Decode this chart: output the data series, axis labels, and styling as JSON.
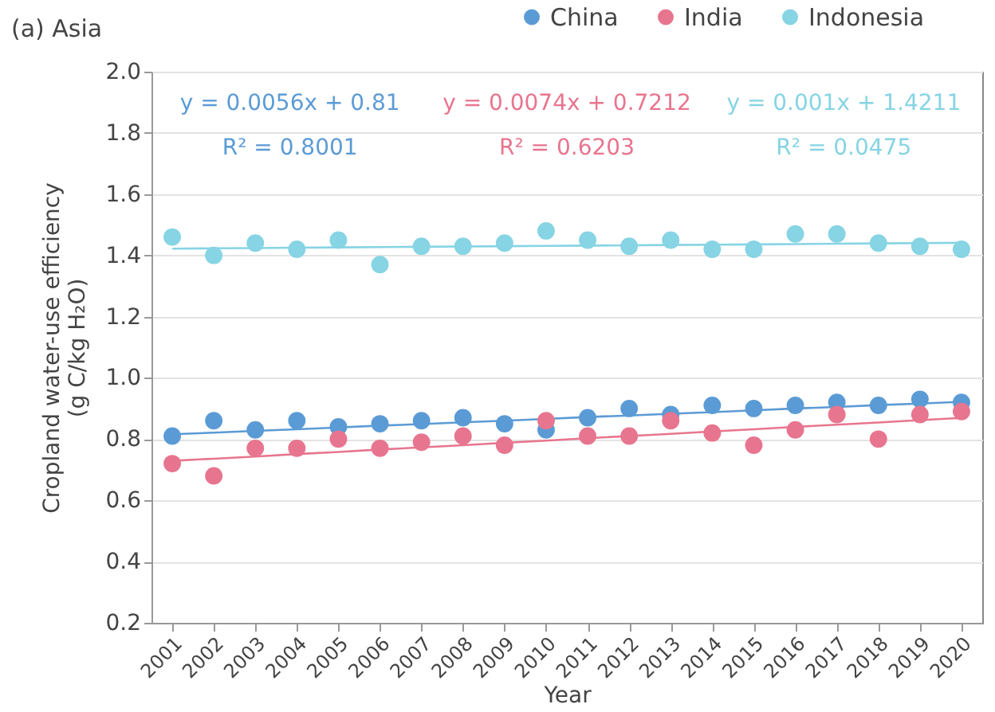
{
  "chart_data": {
    "type": "scatter",
    "title": "(a) Asia",
    "xlabel": "Year",
    "ylabel": "Cropland water-use efficiency\n(g C/kg H₂O)",
    "categories": [
      "2001",
      "2002",
      "2003",
      "2004",
      "2005",
      "2006",
      "2007",
      "2008",
      "2009",
      "2010",
      "2011",
      "2012",
      "2013",
      "2014",
      "2015",
      "2016",
      "2017",
      "2018",
      "2019",
      "2020"
    ],
    "series": [
      {
        "name": "China",
        "color": "#5b9bd5",
        "marker": "circle",
        "values": [
          0.81,
          0.86,
          0.83,
          0.86,
          0.84,
          0.85,
          0.86,
          0.87,
          0.85,
          0.83,
          0.87,
          0.9,
          0.88,
          0.91,
          0.9,
          0.91,
          0.92,
          0.91,
          0.93,
          0.92
        ]
      },
      {
        "name": "India",
        "color": "#e8758f",
        "marker": "circle",
        "values": [
          0.72,
          0.68,
          0.77,
          0.77,
          0.8,
          0.77,
          0.79,
          0.81,
          0.78,
          0.86,
          0.81,
          0.81,
          0.86,
          0.82,
          0.78,
          0.83,
          0.88,
          0.8,
          0.88,
          0.89
        ]
      },
      {
        "name": "Indonesia",
        "color": "#86d4e4",
        "marker": "circle",
        "values": [
          1.46,
          1.4,
          1.44,
          1.42,
          1.45,
          1.37,
          1.43,
          1.43,
          1.44,
          1.48,
          1.45,
          1.43,
          1.45,
          1.42,
          1.42,
          1.47,
          1.47,
          1.44,
          1.43,
          1.42
        ]
      },
      {
        "color": "#5b9bd5",
        "type": "line",
        "values": [
          0.816,
          0.821,
          0.827,
          0.832,
          0.838,
          0.844,
          0.849,
          0.855,
          0.86,
          0.866,
          0.872,
          0.877,
          0.883,
          0.888,
          0.894,
          0.9,
          0.905,
          0.911,
          0.916,
          0.922
        ]
      },
      {
        "color": "#e8758f",
        "type": "line",
        "values": [
          0.729,
          0.736,
          0.743,
          0.751,
          0.758,
          0.766,
          0.773,
          0.78,
          0.788,
          0.795,
          0.803,
          0.81,
          0.817,
          0.825,
          0.832,
          0.84,
          0.847,
          0.854,
          0.862,
          0.869
        ]
      },
      {
        "color": "#86d4e4",
        "type": "line",
        "values": [
          1.422,
          1.423,
          1.424,
          1.425,
          1.426,
          1.427,
          1.428,
          1.429,
          1.43,
          1.431,
          1.432,
          1.433,
          1.434,
          1.435,
          1.436,
          1.437,
          1.438,
          1.439,
          1.44,
          1.441
        ]
      }
    ],
    "annotations": [
      "y = 0.0056x + 0.81",
      "y = 0.0074x + 0.7212",
      "y = 0.001x + 1.4211",
      "R² = 0.8001",
      "R² = 0.6203",
      "R² = 0.0475"
    ],
    "ylim": [
      0.2,
      2.0
    ],
    "yticks": [
      0.2,
      0.4,
      0.6,
      0.8,
      {
        "value": 1,
        "label": "1.0"
      },
      1.2,
      1.4,
      1.6,
      1.8,
      {
        "value": 2,
        "label": "2.0"
      }
    ],
    "grid": "y",
    "legend": "top right"
  }
}
